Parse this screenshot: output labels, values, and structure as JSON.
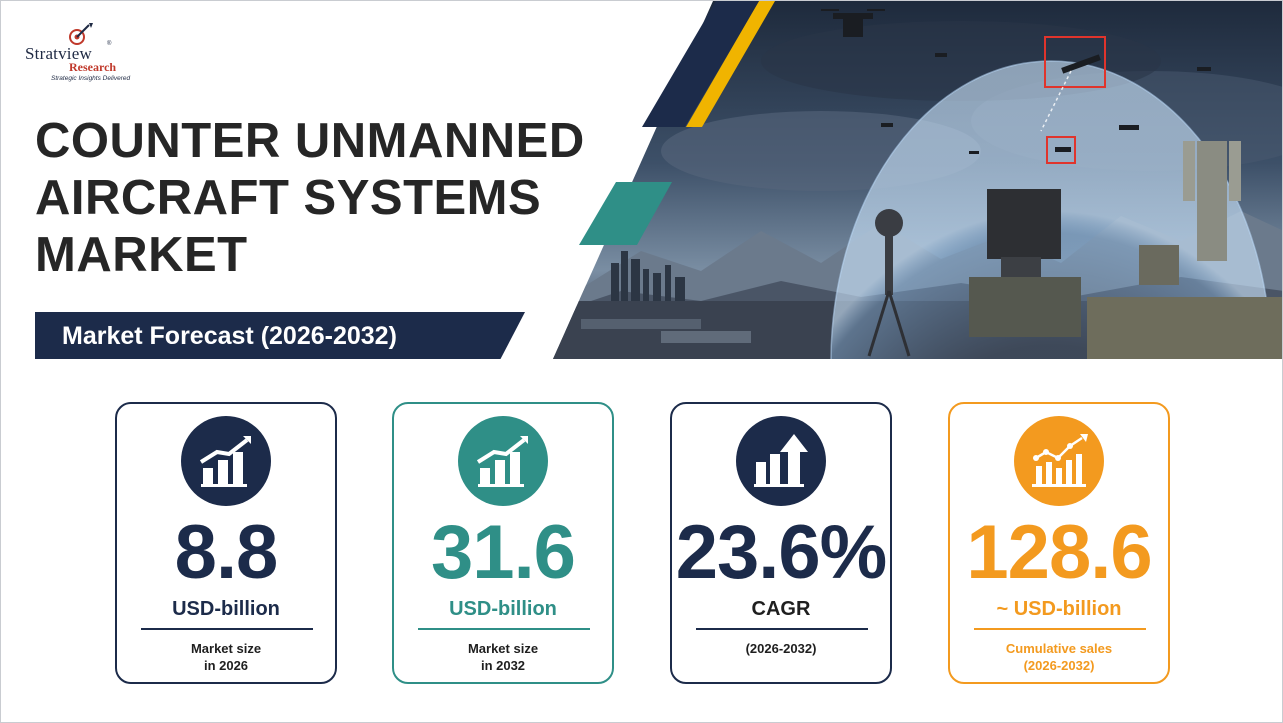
{
  "logo": {
    "name": "Stratview",
    "registered": "®",
    "sub": "Research",
    "tagline": "Strategic Insights Delivered"
  },
  "title": {
    "line1": "COUNTER UNMANNED",
    "line2": "AIRCRAFT SYSTEMS",
    "line3": "MARKET"
  },
  "forecast_label": "Market Forecast (2026-2032)",
  "colors": {
    "navy": "#1c2b4a",
    "teal": "#2f8f87",
    "orange": "#f39a1f",
    "yellow": "#f0b400"
  },
  "cards": [
    {
      "icon": "bar-chart-growth-icon",
      "value": "8.8",
      "unit": "USD-billion",
      "desc_line1": "Market size",
      "desc_line2": "in 2026",
      "color": "#1c2b4a"
    },
    {
      "icon": "bar-chart-growth-icon",
      "value": "31.6",
      "unit": "USD-billion",
      "desc_line1": "Market size",
      "desc_line2": "in 2032",
      "color": "#2f8f87"
    },
    {
      "icon": "bar-arrow-up-icon",
      "value": "23.6%",
      "unit": "CAGR",
      "desc_line1": "(2026-2032)",
      "desc_line2": "",
      "color": "#1c2b4a"
    },
    {
      "icon": "cumulative-chart-icon",
      "value": "128.6",
      "unit": "~ USD-billion",
      "desc_line1": "Cumulative sales",
      "desc_line2": "(2026-2032)",
      "color": "#f39a1f"
    }
  ]
}
